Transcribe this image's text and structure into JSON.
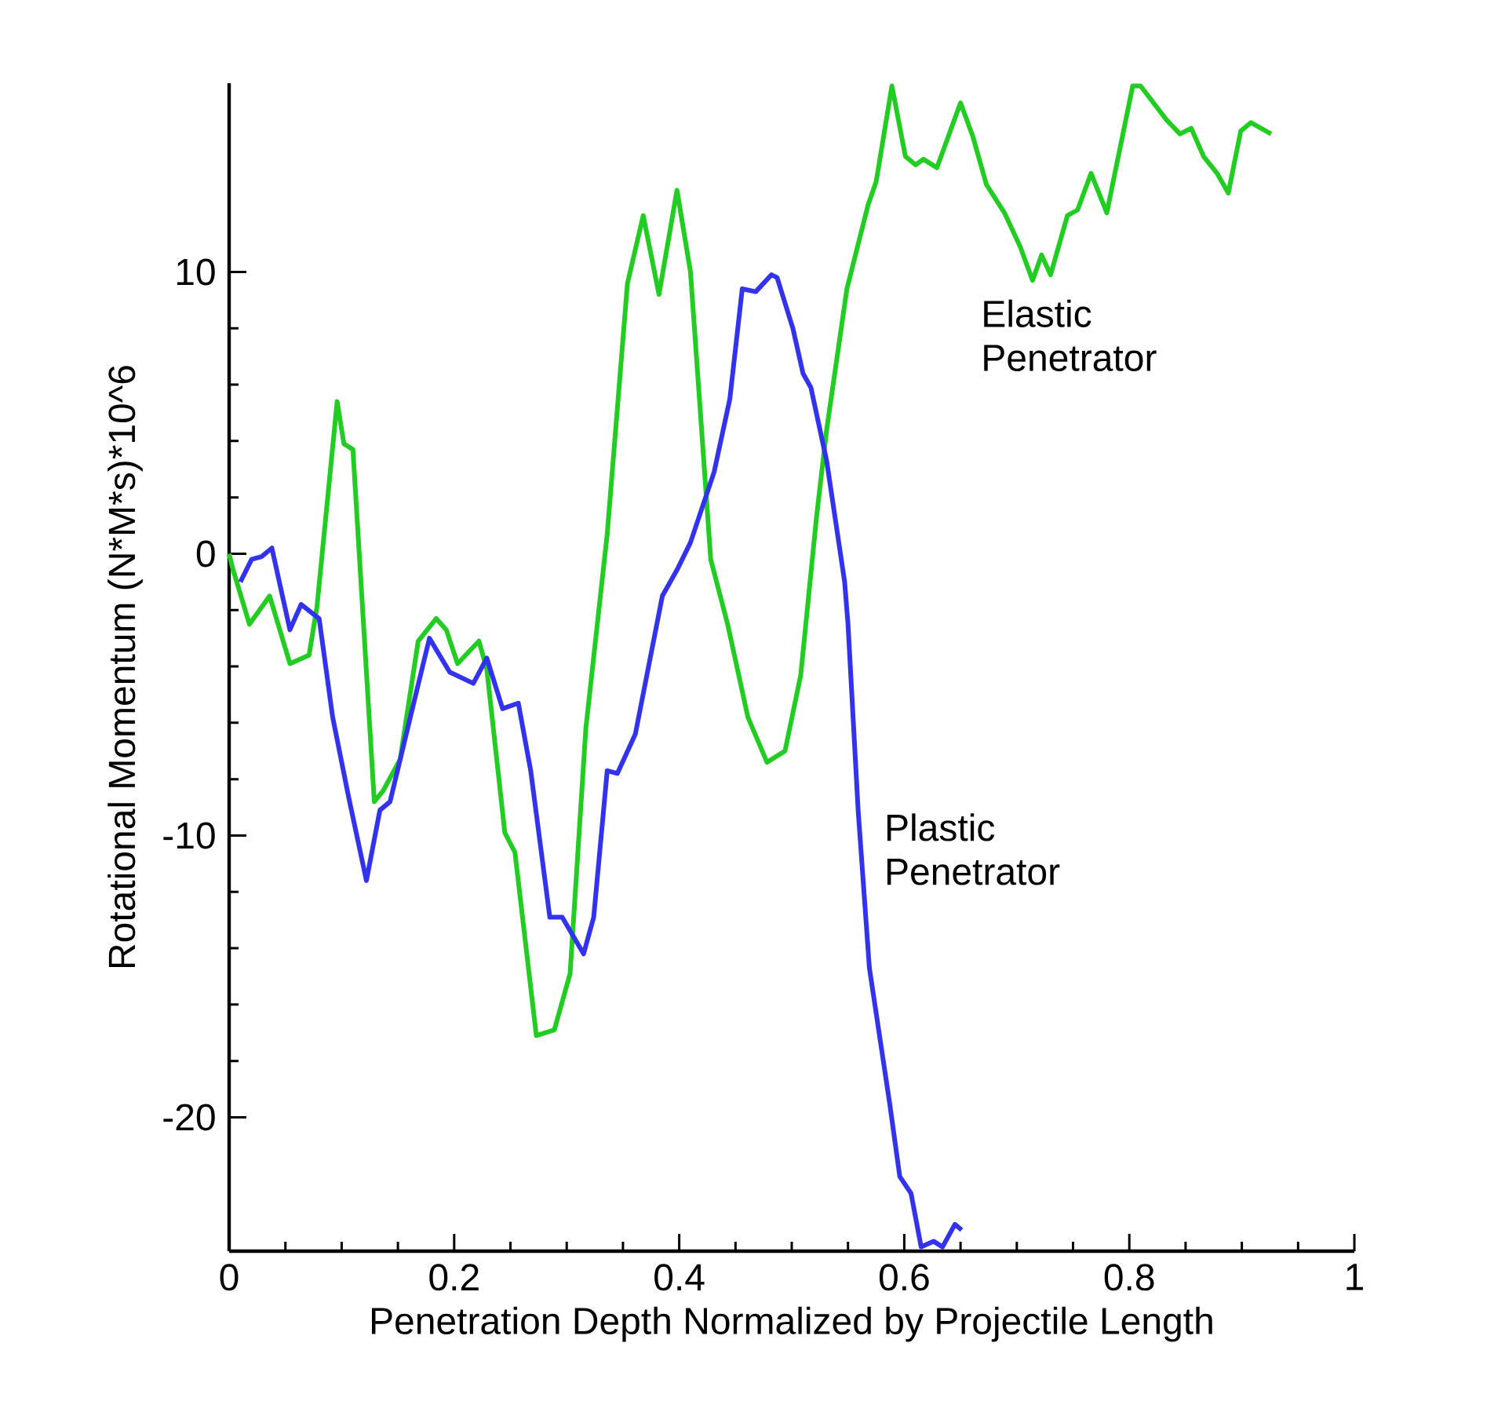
{
  "chart_data": {
    "type": "line",
    "xlabel": "Penetration Depth Normalized by Projectile Length",
    "ylabel": "Rotational Momentum (N*M*s)*10^6",
    "xlim": [
      0,
      1
    ],
    "ylim": [
      -24.75,
      16.7
    ],
    "xticks": [
      0,
      0.2,
      0.4,
      0.6,
      0.8,
      1
    ],
    "yticks": [
      -20,
      -10,
      0,
      10
    ],
    "series": [
      {
        "name": "Elastic Penetrator",
        "color": "#22cc22",
        "x": [
          0,
          0.003,
          0.018,
          0.036,
          0.054,
          0.071,
          0.078,
          0.096,
          0.102,
          0.11,
          0.129,
          0.137,
          0.152,
          0.168,
          0.184,
          0.193,
          0.203,
          0.222,
          0.229,
          0.245,
          0.254,
          0.273,
          0.289,
          0.303,
          0.317,
          0.336,
          0.354,
          0.368,
          0.382,
          0.398,
          0.41,
          0.428,
          0.443,
          0.461,
          0.478,
          0.494,
          0.508,
          0.522,
          0.531,
          0.549,
          0.568,
          0.575,
          0.589,
          0.601,
          0.61,
          0.617,
          0.629,
          0.65,
          0.661,
          0.673,
          0.689,
          0.703,
          0.714,
          0.722,
          0.73,
          0.745,
          0.754,
          0.766,
          0.78,
          0.803,
          0.81,
          0.833,
          0.845,
          0.855,
          0.866,
          0.878,
          0.888,
          0.899,
          0.908,
          0.926
        ],
        "values": [
          0,
          -0.5,
          -2.5,
          -1.5,
          -3.9,
          -3.6,
          -1.9,
          5.4,
          3.9,
          3.7,
          -8.8,
          -8.4,
          -7.3,
          -3.1,
          -2.3,
          -2.7,
          -3.9,
          -3.1,
          -4.1,
          -9.9,
          -10.6,
          -17.1,
          -16.9,
          -14.9,
          -6.2,
          0.7,
          9.6,
          12.0,
          9.2,
          12.9,
          10.0,
          -0.2,
          -2.5,
          -5.8,
          -7.4,
          -7.0,
          -4.3,
          1.3,
          4.4,
          9.4,
          12.4,
          13.2,
          16.6,
          14.1,
          13.8,
          14.0,
          13.7,
          16.0,
          14.8,
          13.1,
          12.1,
          10.9,
          9.7,
          10.6,
          9.9,
          12.0,
          12.2,
          13.5,
          12.1,
          16.6,
          16.6,
          15.4,
          14.9,
          15.1,
          14.1,
          13.5,
          12.8,
          15.0,
          15.3,
          14.9
        ]
      },
      {
        "name": "Plastic Penetrator",
        "color": "#3333ee",
        "x": [
          0.01,
          0.02,
          0.029,
          0.038,
          0.054,
          0.064,
          0.08,
          0.092,
          0.106,
          0.122,
          0.134,
          0.143,
          0.161,
          0.178,
          0.196,
          0.217,
          0.229,
          0.243,
          0.257,
          0.268,
          0.285,
          0.296,
          0.315,
          0.324,
          0.336,
          0.345,
          0.361,
          0.385,
          0.399,
          0.41,
          0.431,
          0.445,
          0.456,
          0.468,
          0.482,
          0.487,
          0.501,
          0.51,
          0.517,
          0.531,
          0.547,
          0.55,
          0.559,
          0.569,
          0.587,
          0.596,
          0.606,
          0.615,
          0.626,
          0.634,
          0.645,
          0.651
        ],
        "values": [
          -1.0,
          -0.2,
          -0.1,
          0.2,
          -2.7,
          -1.8,
          -2.3,
          -5.8,
          -8.6,
          -11.6,
          -9.1,
          -8.8,
          -5.8,
          -3.0,
          -4.2,
          -4.6,
          -3.7,
          -5.5,
          -5.3,
          -7.7,
          -12.9,
          -12.9,
          -14.2,
          -12.9,
          -7.7,
          -7.8,
          -6.4,
          -1.5,
          -0.5,
          0.4,
          2.9,
          5.5,
          9.4,
          9.3,
          9.9,
          9.8,
          8.0,
          6.4,
          5.9,
          3.3,
          -1.0,
          -2.5,
          -9.1,
          -14.7,
          -19.5,
          -22.1,
          -22.7,
          -24.6,
          -24.4,
          -24.6,
          -23.8,
          -24.0
        ]
      }
    ]
  }
}
